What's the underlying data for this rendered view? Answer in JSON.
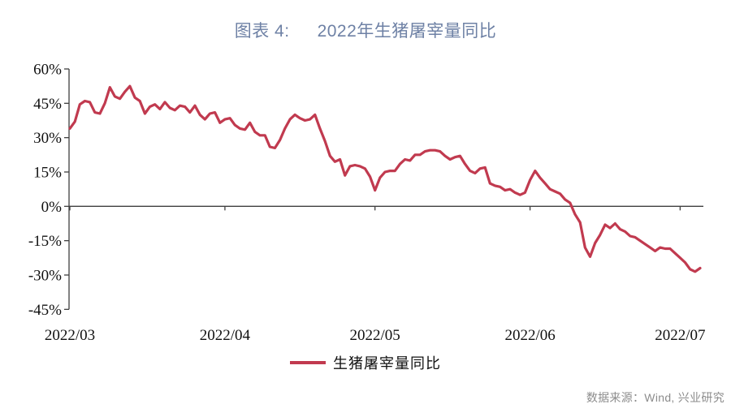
{
  "figure": {
    "title_label": "图表 4:",
    "title_text": "2022年生猪屠宰量同比",
    "source": "数据来源：Wind, 兴业研究"
  },
  "legend": {
    "label": "生猪屠宰量同比"
  },
  "colors": {
    "line": "#C13A4F",
    "title": "#6E81A5",
    "axis": "#3F3F3F",
    "muted": "#8C8C8C"
  },
  "chart_data": {
    "type": "line",
    "title": "2022年生猪屠宰量同比",
    "series_name": "生猪屠宰量同比",
    "unit": "%",
    "grid": false,
    "legend_position": "bottom",
    "ylim": [
      -45,
      60
    ],
    "y_ticks": [
      60,
      45,
      30,
      15,
      0,
      -15,
      -30,
      -45
    ],
    "y_tick_suffix": "%",
    "x_tick_labels": [
      "2022/03",
      "2022/04",
      "2022/05",
      "2022/06",
      "2022/07"
    ],
    "x_months": [
      {
        "label": "2022/03",
        "days": 31
      },
      {
        "label": "2022/04",
        "days": 30
      },
      {
        "label": "2022/05",
        "days": 31
      },
      {
        "label": "2022/06",
        "days": 30
      },
      {
        "label": "2022/07",
        "days": 5
      }
    ],
    "x_start_date": "2022/03/01",
    "x_end_date": "2022/07/05",
    "values": [
      34,
      37,
      44.5,
      46,
      45.5,
      41,
      40.5,
      45,
      52,
      48,
      47,
      50,
      52.5,
      47.5,
      46,
      40.5,
      43.5,
      44.5,
      42.5,
      45.5,
      43,
      42,
      44,
      43.5,
      41,
      44,
      40,
      38,
      40.5,
      41,
      36.5,
      38,
      38.5,
      35.5,
      34,
      33.5,
      36.5,
      32.5,
      31,
      31,
      26,
      25.5,
      29,
      34,
      38,
      40,
      38.5,
      37.5,
      38,
      40,
      34,
      28.5,
      22,
      19.5,
      20.5,
      13.5,
      17.5,
      18,
      17.5,
      16.5,
      13,
      7,
      12.5,
      15,
      15.5,
      15.5,
      18.5,
      20.5,
      20,
      22.5,
      22.5,
      24,
      24.5,
      24.5,
      24,
      22,
      20.5,
      21.5,
      22,
      18.5,
      15.5,
      14.5,
      16.5,
      17,
      10,
      9,
      8.5,
      7,
      7.5,
      6,
      5,
      6,
      11.5,
      15.5,
      12.5,
      10,
      7.5,
      6.5,
      5.5,
      3,
      1.5,
      -3.5,
      -7,
      -18,
      -22,
      -16,
      -12.5,
      -8,
      -9.5,
      -7.5,
      -10,
      -11,
      -13,
      -13.5,
      -15,
      -16.5,
      -18,
      -19.5,
      -18,
      -18.5,
      -18.5,
      -20.5,
      -22.5,
      -24.5,
      -27.5,
      -28.5,
      -27
    ]
  }
}
